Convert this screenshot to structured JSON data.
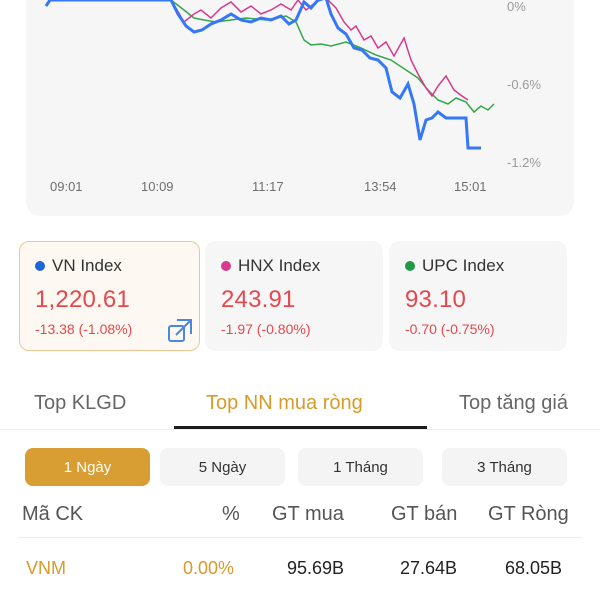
{
  "chart": {
    "y_labels": [
      "0%",
      "-0.6%",
      "-1.2%"
    ],
    "x_labels": [
      "09:01",
      "10:09",
      "11:17",
      "13:54",
      "15:01"
    ],
    "series_colors": {
      "vn": "#3478f6",
      "hnx": "#d63a8e",
      "upc": "#35a64a"
    }
  },
  "indices": [
    {
      "name": "VN Index",
      "value": "1,220.61",
      "change": "-13.38 (-1.08%)",
      "dot_color": "#1e66d6"
    },
    {
      "name": "HNX Index",
      "value": "243.91",
      "change": "-1.97 (-0.80%)",
      "dot_color": "#d63a8e"
    },
    {
      "name": "UPC Index",
      "value": "93.10",
      "change": "-0.70 (-0.75%)",
      "dot_color": "#1f9a48"
    }
  ],
  "tabs": [
    "Top KLGD",
    "Top NN mua ròng",
    "Top tăng giá"
  ],
  "periods": [
    "1 Ngày",
    "5 Ngày",
    "1 Tháng",
    "3 Tháng"
  ],
  "table": {
    "headers": [
      "Mã CK",
      "%",
      "GT mua",
      "GT bán",
      "GT Ròng"
    ],
    "rows": [
      {
        "symbol": "VNM",
        "pct": "0.00%",
        "buy": "95.69B",
        "sell": "27.64B",
        "net": "68.05B"
      }
    ]
  },
  "colors": {
    "accent": "#d89e33",
    "negative": "#e5484d"
  }
}
